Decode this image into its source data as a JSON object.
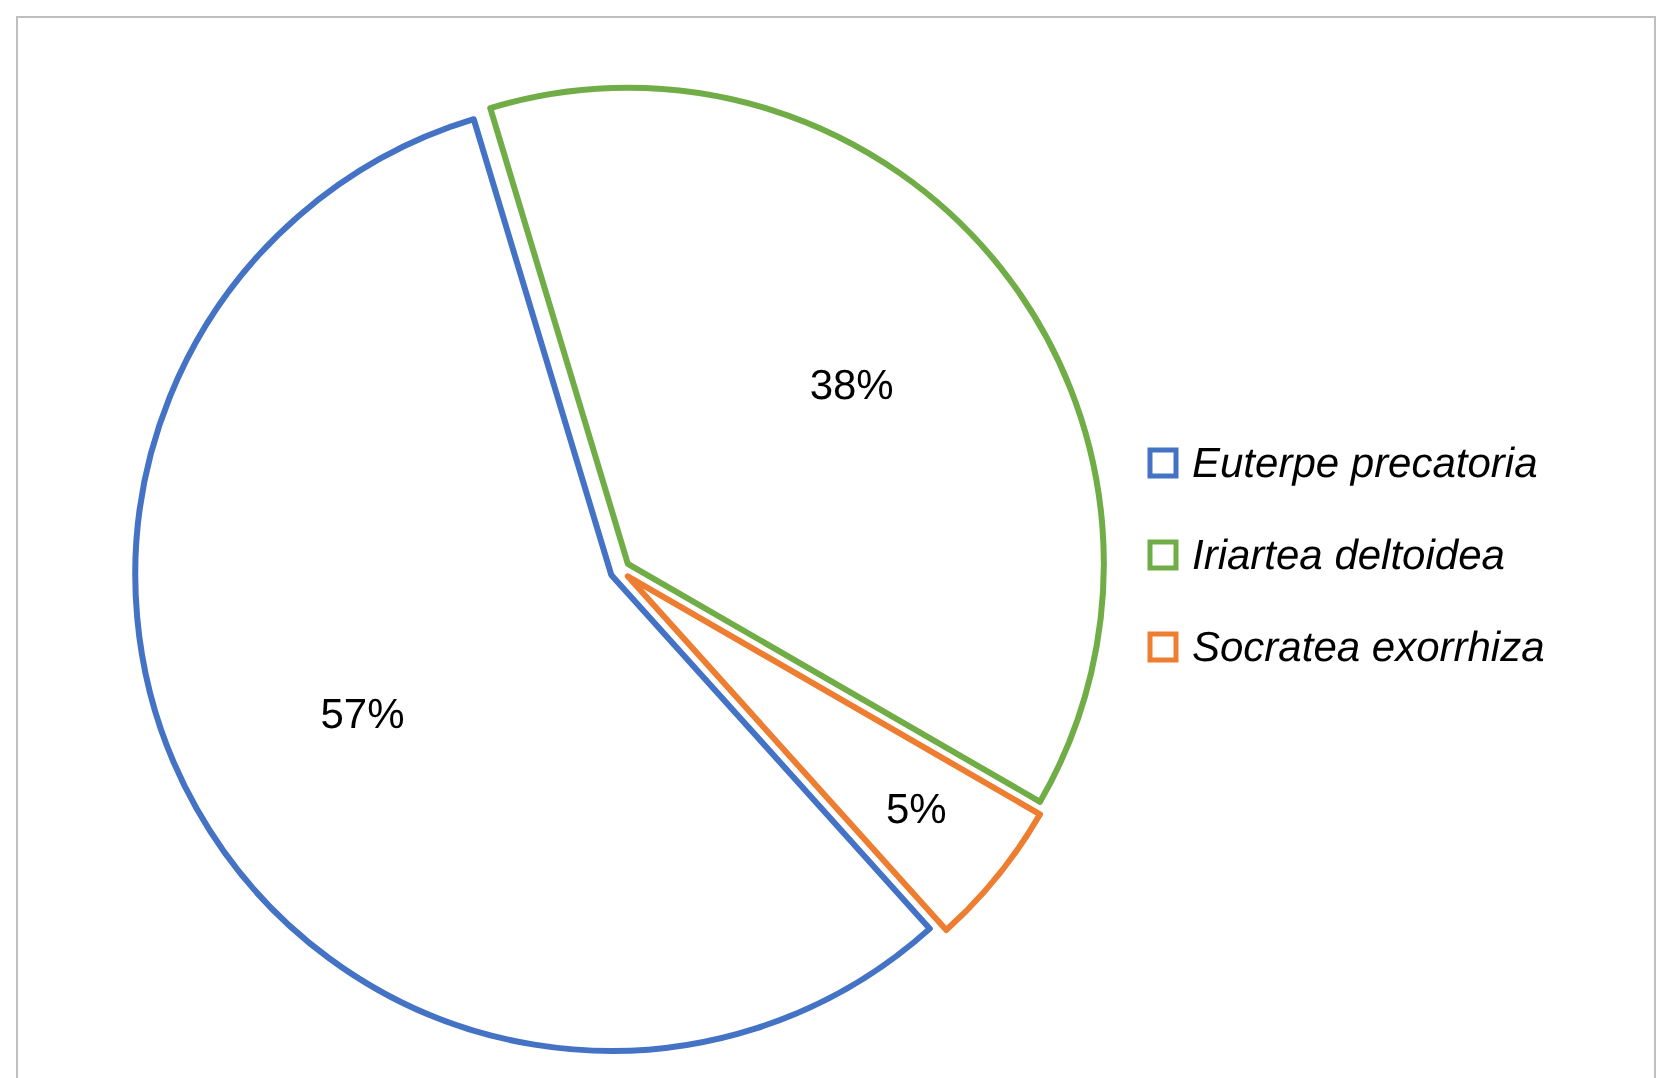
{
  "chart_data": {
    "type": "pie",
    "categories": [
      "Euterpe precatoria",
      "Iriartea deltoidea",
      "Socratea exorrhiza"
    ],
    "values": [
      57,
      38,
      5
    ],
    "colors": [
      "#4472c4",
      "#70ad47",
      "#ed7d31"
    ],
    "value_labels": [
      "57%",
      "38%",
      "5%"
    ],
    "legend": "right"
  }
}
